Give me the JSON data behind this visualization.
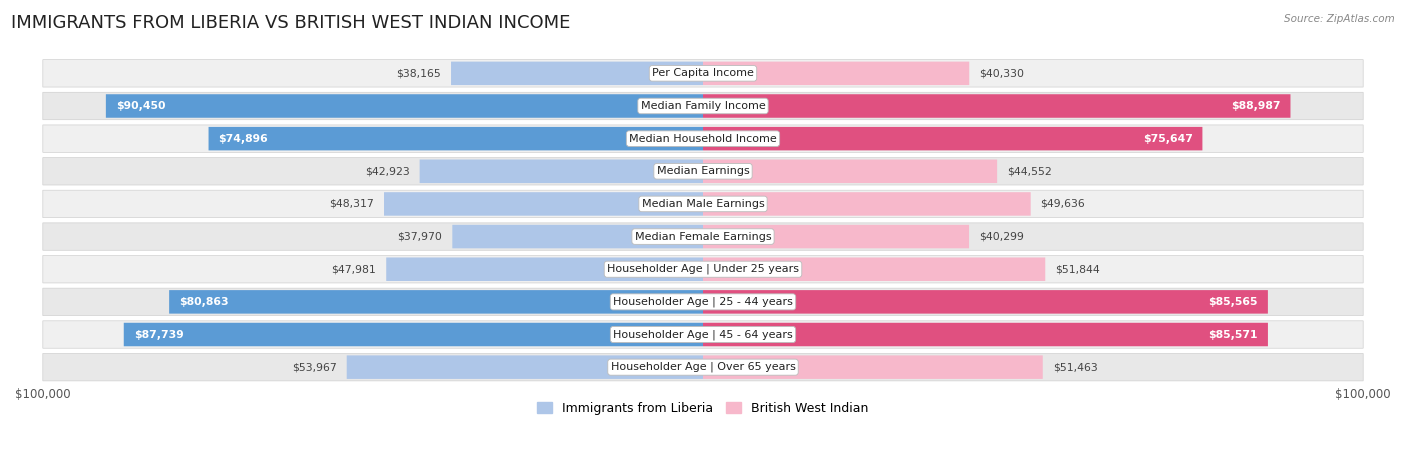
{
  "title": "IMMIGRANTS FROM LIBERIA VS BRITISH WEST INDIAN INCOME",
  "source": "Source: ZipAtlas.com",
  "categories": [
    "Per Capita Income",
    "Median Family Income",
    "Median Household Income",
    "Median Earnings",
    "Median Male Earnings",
    "Median Female Earnings",
    "Householder Age | Under 25 years",
    "Householder Age | 25 - 44 years",
    "Householder Age | 45 - 64 years",
    "Householder Age | Over 65 years"
  ],
  "liberia_values": [
    38165,
    90450,
    74896,
    42923,
    48317,
    37970,
    47981,
    80863,
    87739,
    53967
  ],
  "bwi_values": [
    40330,
    88987,
    75647,
    44552,
    49636,
    40299,
    51844,
    85565,
    85571,
    51463
  ],
  "liberia_labels": [
    "$38,165",
    "$90,450",
    "$74,896",
    "$42,923",
    "$48,317",
    "$37,970",
    "$47,981",
    "$80,863",
    "$87,739",
    "$53,967"
  ],
  "bwi_labels": [
    "$40,330",
    "$88,987",
    "$75,647",
    "$44,552",
    "$49,636",
    "$40,299",
    "$51,844",
    "$85,565",
    "$85,571",
    "$51,463"
  ],
  "liberia_color_light": "#aec6e8",
  "liberia_color_dark": "#5b9bd5",
  "bwi_color_light": "#f7b8cb",
  "bwi_color_dark": "#e05080",
  "max_value": 100000,
  "title_fontsize": 13,
  "label_fontsize": 8,
  "value_fontsize": 7.8,
  "legend_liberia": "Immigrants from Liberia",
  "legend_bwi": "British West Indian",
  "inside_label_threshold": 60000
}
